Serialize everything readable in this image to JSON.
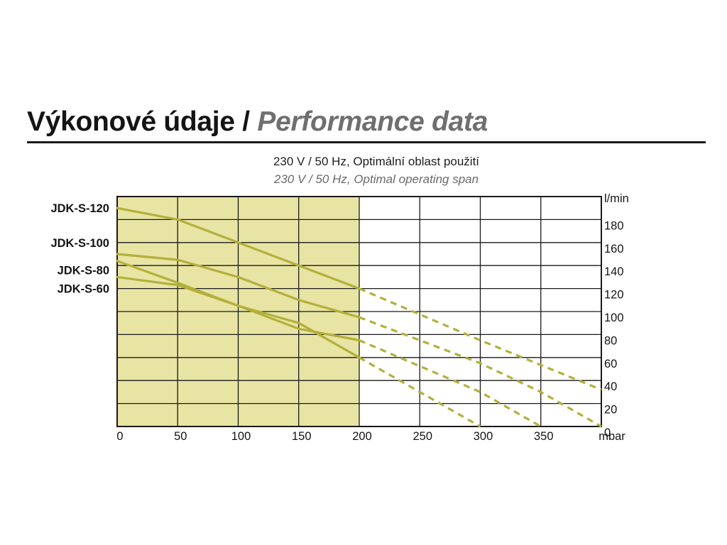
{
  "header": {
    "title_cz": "Výkonové údaje",
    "separator": "/",
    "title_en": "Performance data"
  },
  "subtitle_cz": "230 V / 50 Hz, Optimální oblast použití",
  "subtitle_en": "230 V / 50 Hz, Optimal operating span",
  "colors": {
    "optimal_region": "#e8e4a4",
    "curve": "#b3b03a",
    "grid": "#1a1a1a"
  },
  "chart_data": {
    "type": "line",
    "xlabel": "mbar",
    "ylabel": "l/min",
    "xlim": [
      0,
      400
    ],
    "ylim": [
      0,
      200
    ],
    "x_ticks": [
      0,
      50,
      100,
      150,
      200,
      250,
      300,
      350
    ],
    "y_ticks": [
      0,
      20,
      40,
      60,
      80,
      100,
      120,
      140,
      160,
      180
    ],
    "x_tick_labels": [
      "0",
      "50",
      "100",
      "150",
      "200",
      "250",
      "300",
      "350"
    ],
    "y_tick_labels": [
      "0",
      "20",
      "40",
      "60",
      "80",
      "100",
      "120",
      "140",
      "160",
      "180"
    ],
    "optimal_range_x": [
      0,
      200
    ],
    "grid": true,
    "solid_until_x": 200,
    "series": [
      {
        "name": "JDK-S-120",
        "label_y": 190,
        "points": [
          [
            0,
            190
          ],
          [
            50,
            180
          ],
          [
            100,
            160
          ],
          [
            150,
            140
          ],
          [
            200,
            120
          ],
          [
            300,
            75
          ],
          [
            400,
            32
          ]
        ]
      },
      {
        "name": "JDK-S-100",
        "label_y": 160,
        "points": [
          [
            0,
            150
          ],
          [
            50,
            145
          ],
          [
            100,
            130
          ],
          [
            150,
            110
          ],
          [
            200,
            95
          ],
          [
            300,
            55
          ],
          [
            350,
            30
          ],
          [
            400,
            0
          ]
        ]
      },
      {
        "name": "JDK-S-80",
        "label_y": 136,
        "points": [
          [
            0,
            144
          ],
          [
            50,
            125
          ],
          [
            100,
            105
          ],
          [
            150,
            85
          ],
          [
            200,
            75
          ],
          [
            300,
            30
          ],
          [
            350,
            0
          ]
        ]
      },
      {
        "name": "JDK-S-60",
        "label_y": 120,
        "points": [
          [
            0,
            130
          ],
          [
            50,
            123
          ],
          [
            100,
            105
          ],
          [
            150,
            90
          ],
          [
            200,
            60
          ],
          [
            300,
            0
          ]
        ]
      }
    ]
  }
}
